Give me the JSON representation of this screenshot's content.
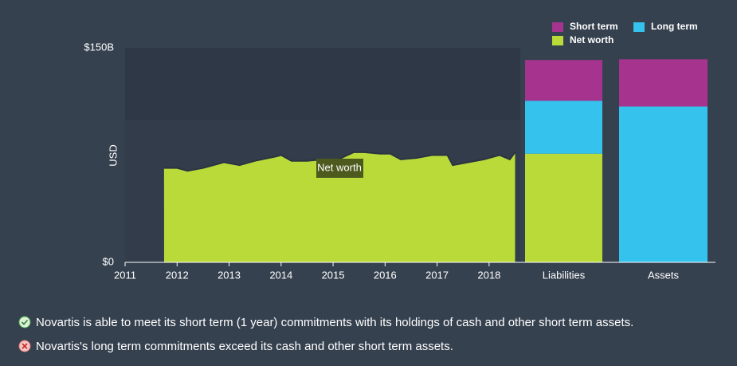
{
  "chart_data": [
    {
      "type": "area",
      "y_label": "USD",
      "annotation": "Net worth",
      "color": "#bada3a",
      "x": [
        2011.75,
        2012.0,
        2012.2,
        2012.5,
        2012.9,
        2013.2,
        2013.5,
        2013.9,
        2014.0,
        2014.2,
        2014.5,
        2014.8,
        2015.1,
        2015.4,
        2015.6,
        2015.9,
        2016.1,
        2016.3,
        2016.6,
        2016.9,
        2017.2,
        2017.3,
        2017.6,
        2017.9,
        2018.2,
        2018.4,
        2018.5
      ],
      "values": [
        66,
        66,
        64,
        66,
        70,
        68,
        71,
        74,
        75,
        71,
        71,
        72,
        72,
        77,
        77,
        76,
        76,
        72,
        73,
        75,
        75,
        68,
        70,
        72,
        75,
        72,
        77
      ],
      "xlim": [
        2011,
        2018.6
      ],
      "xticks": [
        2011,
        2012,
        2013,
        2014,
        2015,
        2016,
        2017,
        2018
      ],
      "ylim": [
        0,
        150
      ],
      "yticks": [
        {
          "value": 0,
          "label": "$0"
        },
        {
          "value": 150,
          "label": "$150B"
        }
      ]
    },
    {
      "type": "bar",
      "stacked": true,
      "categories": [
        "Liabilities",
        "Assets"
      ],
      "ylim": [
        0,
        150
      ],
      "series": [
        {
          "name": "Short term",
          "color": "#a6348f",
          "values": [
            28.5,
            33
          ]
        },
        {
          "name": "Long term",
          "color": "#35c3ee",
          "values": [
            37,
            109
          ]
        },
        {
          "name": "Net worth",
          "color": "#bada3a",
          "values": [
            76,
            null
          ]
        }
      ]
    }
  ],
  "notes": [
    "Novartis is able to meet its short term (1 year) commitments with its holdings of cash and other short term assets.",
    "Novartis's long term commitments exceed its cash and other short term assets."
  ]
}
